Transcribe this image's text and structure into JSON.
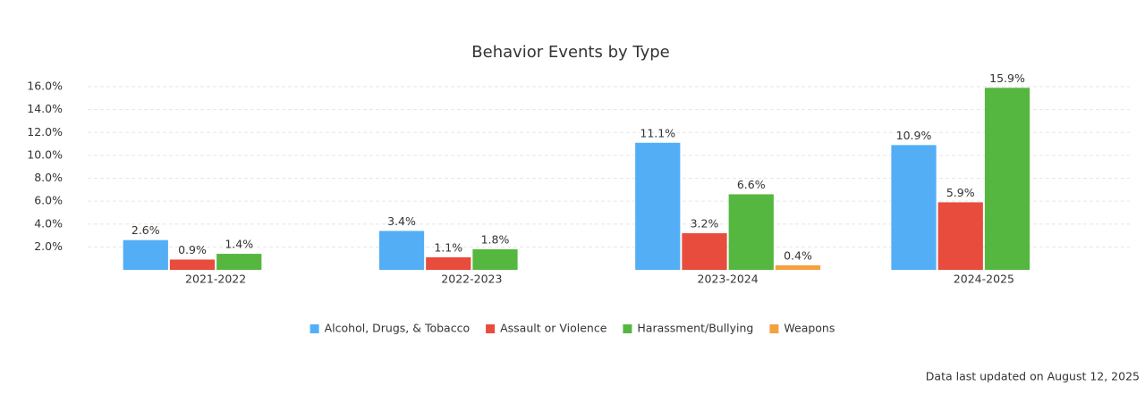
{
  "chart_data": {
    "type": "bar",
    "title": "Behavior Events by Type",
    "categories": [
      "2021-2022",
      "2022-2023",
      "2023-2024",
      "2024-2025"
    ],
    "series": [
      {
        "name": "Alcohol, Drugs, & Tobacco",
        "color": "#53aef6",
        "values": [
          2.6,
          3.4,
          11.1,
          10.9
        ],
        "value_labels": [
          "2.6%",
          "3.4%",
          "11.1%",
          "10.9%"
        ]
      },
      {
        "name": "Assault or Violence",
        "color": "#e84c3d",
        "values": [
          0.9,
          1.1,
          3.2,
          5.9
        ],
        "value_labels": [
          "0.9%",
          "1.1%",
          "3.2%",
          "5.9%"
        ]
      },
      {
        "name": "Harassment/Bullying",
        "color": "#55b740",
        "values": [
          1.4,
          1.8,
          6.6,
          15.9
        ],
        "value_labels": [
          "1.4%",
          "1.8%",
          "6.6%",
          "15.9%"
        ]
      },
      {
        "name": "Weapons",
        "color": "#f4a13f",
        "values": [
          null,
          null,
          0.4,
          null
        ],
        "value_labels": [
          null,
          null,
          "0.4%",
          null
        ]
      }
    ],
    "ylim": [
      0,
      16
    ],
    "yticks": [
      {
        "value": 2,
        "label": "2.0%"
      },
      {
        "value": 4,
        "label": "4.0%"
      },
      {
        "value": 6,
        "label": "6.0%"
      },
      {
        "value": 8,
        "label": "8.0%"
      },
      {
        "value": 10,
        "label": "10.0%"
      },
      {
        "value": 12,
        "label": "12.0%"
      },
      {
        "value": 14,
        "label": "14.0%"
      },
      {
        "value": 16,
        "label": "16.0%"
      }
    ],
    "grid": true,
    "legend": "bottom",
    "note": "Data last updated on August 12, 2025"
  }
}
